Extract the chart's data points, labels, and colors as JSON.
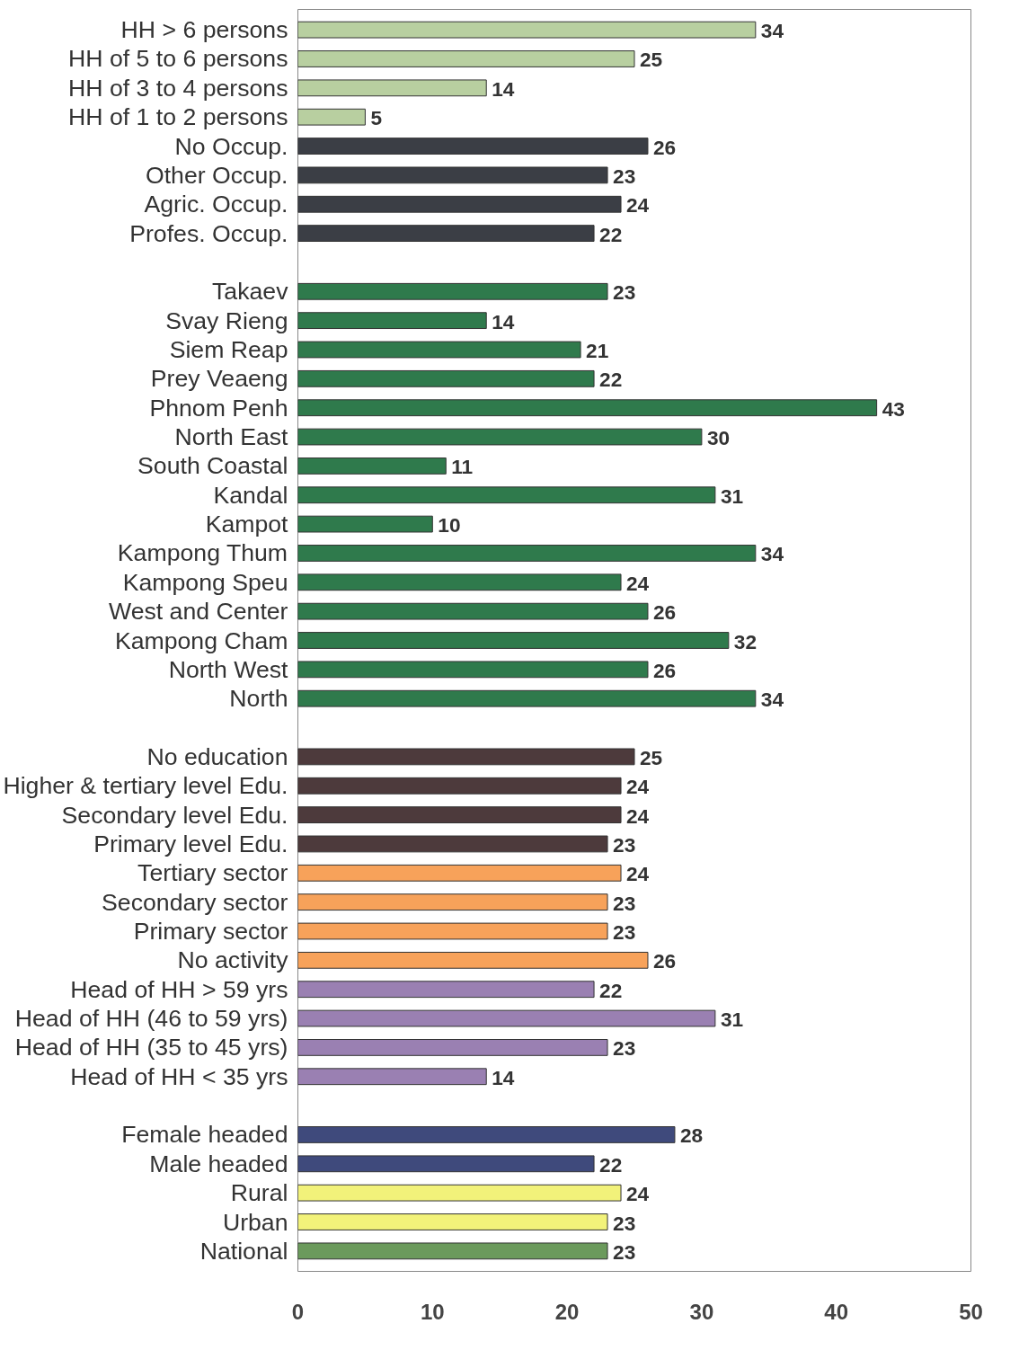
{
  "chart_data": {
    "type": "bar",
    "orientation": "horizontal",
    "data_labels": true,
    "grid": false,
    "categories": [
      "HH > 6 persons",
      "HH of 5 to 6 persons",
      "HH of 3 to 4 persons",
      "HH of 1 to 2 persons",
      "No Occup.",
      "Other Occup.",
      "Agric. Occup.",
      "Profes. Occup.",
      null,
      "Takaev",
      "Svay Rieng",
      "Siem Reap",
      "Prey Veaeng",
      "Phnom Penh",
      "North East",
      "South Coastal",
      "Kandal",
      "Kampot",
      "Kampong Thum",
      "Kampong Speu",
      "West and Center",
      "Kampong Cham",
      "North West",
      "North",
      null,
      "No education",
      "Higher & tertiary level Edu.",
      "Secondary level Edu.",
      "Primary level Edu.",
      "Tertiary sector",
      "Secondary sector",
      "Primary sector",
      "No activity",
      "Head of HH > 59 yrs",
      "Head of HH (46 to 59 yrs)",
      "Head of HH (35 to 45 yrs)",
      "Head of HH < 35 yrs",
      null,
      "Female headed",
      "Male headed",
      "Rural",
      "Urban",
      "National"
    ],
    "values": [
      34,
      25,
      14,
      5,
      26,
      23,
      24,
      22,
      null,
      23,
      14,
      21,
      22,
      43,
      30,
      11,
      31,
      10,
      34,
      24,
      26,
      32,
      26,
      34,
      null,
      25,
      24,
      24,
      23,
      24,
      23,
      23,
      26,
      22,
      31,
      23,
      14,
      null,
      28,
      22,
      24,
      23,
      23
    ],
    "colors": [
      "#b8cfa0",
      "#b8cfa0",
      "#b8cfa0",
      "#b8cfa0",
      "#3b3e45",
      "#3b3e45",
      "#3b3e45",
      "#3b3e45",
      null,
      "#2f7a4c",
      "#2f7a4c",
      "#2f7a4c",
      "#2f7a4c",
      "#2f7a4c",
      "#2f7a4c",
      "#2f7a4c",
      "#2f7a4c",
      "#2f7a4c",
      "#2f7a4c",
      "#2f7a4c",
      "#2f7a4c",
      "#2f7a4c",
      "#2f7a4c",
      "#2f7a4c",
      null,
      "#4d3a3c",
      "#4d3a3c",
      "#4d3a3c",
      "#4d3a3c",
      "#f7a25a",
      "#f7a25a",
      "#f7a25a",
      "#f7a25a",
      "#9a80b2",
      "#9a80b2",
      "#9a80b2",
      "#9a80b2",
      null,
      "#3f4a7c",
      "#3f4a7c",
      "#f2f27a",
      "#f2f27a",
      "#6b9a5c"
    ],
    "xlim": [
      0,
      50
    ],
    "xticks": [
      0,
      10,
      20,
      30,
      40,
      50
    ]
  }
}
